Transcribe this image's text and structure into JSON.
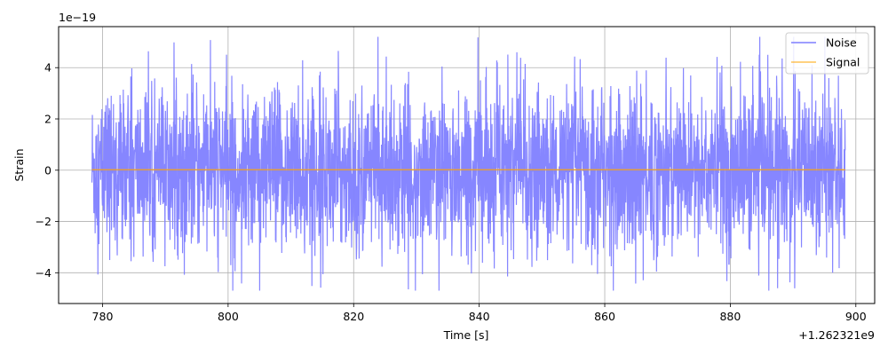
{
  "chart_data": {
    "type": "line",
    "xlabel": "Time [s]",
    "ylabel": "Strain",
    "x_offset_label": "+1.262321e9",
    "y_multiplier_label": "1e−19",
    "xlim": [
      773,
      903
    ],
    "ylim": [
      -5.2,
      5.6
    ],
    "x_ticks": [
      780,
      800,
      820,
      840,
      860,
      880,
      900
    ],
    "y_ticks": [
      -4,
      -2,
      0,
      2,
      4
    ],
    "x_tick_labels": [
      "780",
      "800",
      "820",
      "840",
      "860",
      "880",
      "900"
    ],
    "y_tick_labels": [
      "−4",
      "−2",
      "0",
      "2",
      "4"
    ],
    "grid": true,
    "legend_position": "top-right",
    "series": [
      {
        "name": "Noise",
        "color": "#7f7fff",
        "x_range": [
          778.3,
          898.3
        ],
        "typical_amplitude": 2.5,
        "max": 5.2,
        "min": -4.7
      },
      {
        "name": "Signal",
        "color": "#ffa500",
        "x_range": [
          778.3,
          898.3
        ],
        "value": 0.02
      }
    ]
  }
}
